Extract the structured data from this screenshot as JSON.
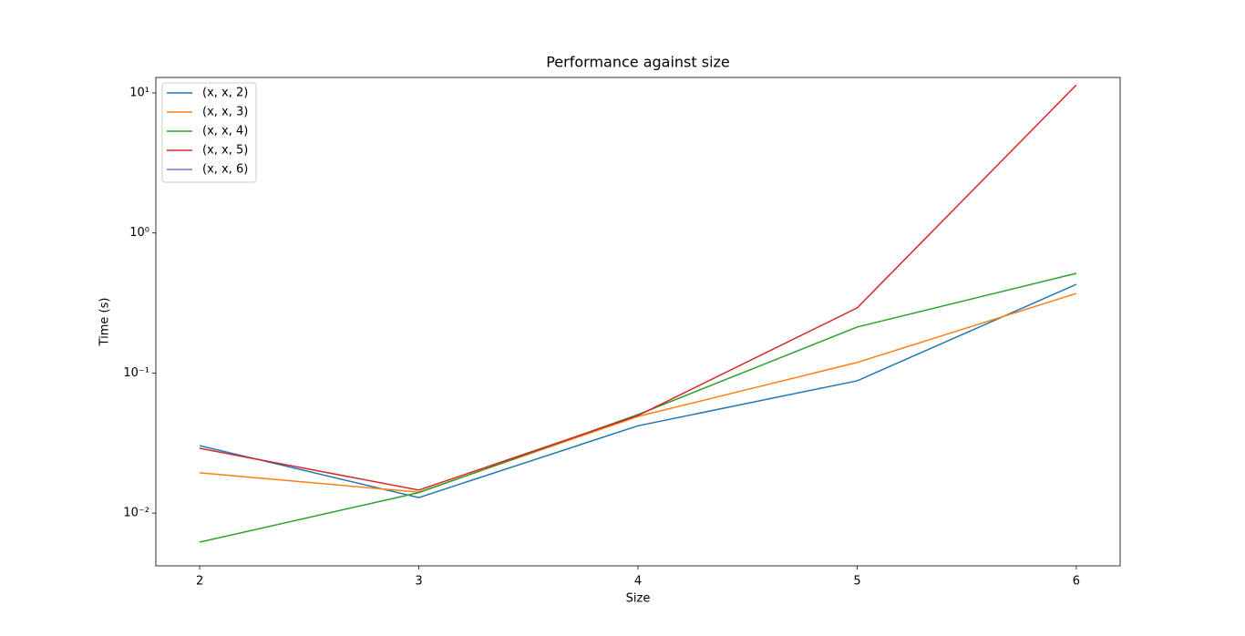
{
  "chart_data": {
    "type": "line",
    "title": "Performance against size",
    "xlabel": "Size",
    "ylabel": "Time (s)",
    "x": [
      2,
      3,
      4,
      5,
      6
    ],
    "series": [
      {
        "name": "(x, x, 2)",
        "color": "#1f77b4",
        "values": [
          0.0303,
          0.0129,
          0.042,
          0.088,
          0.43
        ]
      },
      {
        "name": "(x, x, 3)",
        "color": "#ff7f0e",
        "values": [
          0.0194,
          0.0141,
          0.049,
          0.119,
          0.37
        ]
      },
      {
        "name": "(x, x, 4)",
        "color": "#2ca02c",
        "values": [
          0.0062,
          0.014,
          0.0505,
          0.213,
          0.515
        ]
      },
      {
        "name": "(x, x, 5)",
        "color": "#d62728",
        "values": [
          0.029,
          0.0146,
          0.0497,
          0.292,
          11.4
        ]
      },
      {
        "name": "(x, x, 6)",
        "color": "#9467bd",
        "values": [
          null,
          null,
          null,
          null,
          null
        ]
      }
    ],
    "xlim": [
      1.8,
      6.2
    ],
    "xticks": [
      2,
      3,
      4,
      5,
      6
    ],
    "ylim": [
      0.0042,
      12.9
    ],
    "yscale": "log",
    "yticks": [
      {
        "value": 0.01,
        "label": "10⁻²"
      },
      {
        "value": 0.1,
        "label": "10⁻¹"
      },
      {
        "value": 1,
        "label": "10⁰"
      },
      {
        "value": 10,
        "label": "10¹"
      }
    ],
    "legend": "upper left",
    "grid": false
  }
}
